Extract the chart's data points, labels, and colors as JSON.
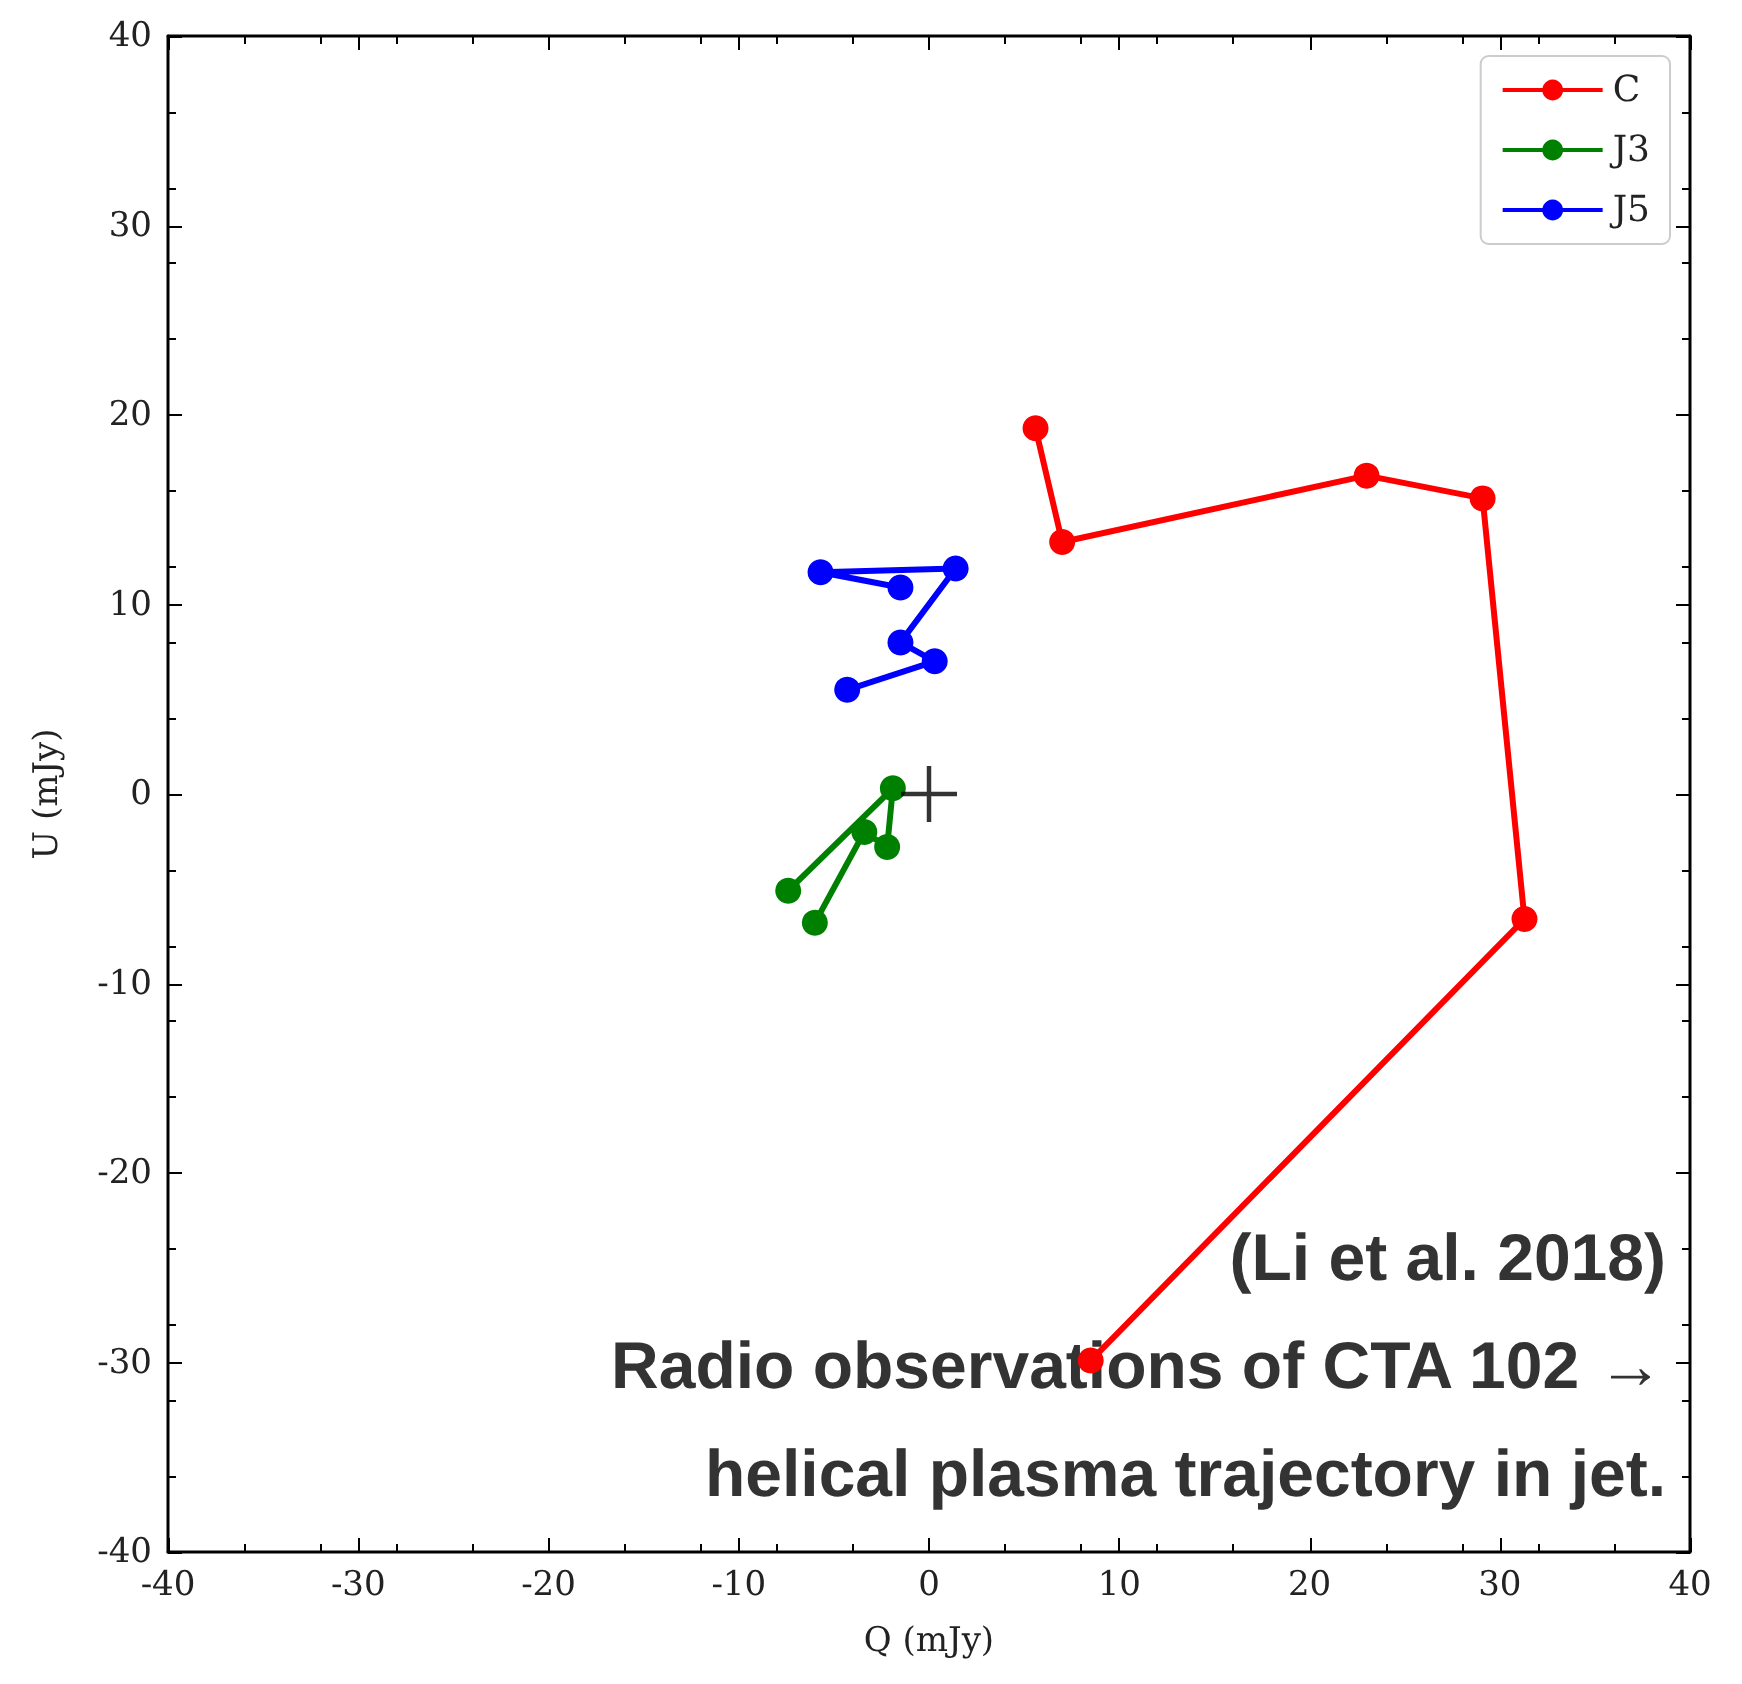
{
  "chart_data": {
    "type": "line",
    "xlabel": "Q (mJy)",
    "ylabel": "U (mJy)",
    "xlim": [
      -40,
      40
    ],
    "ylim": [
      -40,
      40
    ],
    "xticks": [
      -40,
      -30,
      -20,
      -10,
      0,
      10,
      20,
      30,
      40
    ],
    "yticks": [
      -40,
      -30,
      -20,
      -10,
      0,
      10,
      20,
      30,
      40
    ],
    "grid": false,
    "legend": "top right",
    "marker": "circle",
    "line_style": "solid",
    "series": [
      {
        "name": "C",
        "color": "#ff0000",
        "x": [
          8.5,
          31.3,
          29.1,
          23.0,
          7.0,
          5.6
        ],
        "values": [
          -29.9,
          -6.6,
          15.6,
          16.8,
          13.3,
          19.3
        ]
      },
      {
        "name": "J3",
        "color": "#008000",
        "x": [
          -7.4,
          -1.9,
          -2.2,
          -3.4,
          -6.0
        ],
        "values": [
          -5.1,
          0.3,
          -2.8,
          -2.0,
          -6.8
        ]
      },
      {
        "name": "J5",
        "color": "#0000ff",
        "x": [
          -1.5,
          -5.7,
          1.4,
          -1.5,
          0.3,
          -4.3
        ],
        "values": [
          10.9,
          11.7,
          11.9,
          8.0,
          7.0,
          5.5
        ]
      },
      {
        "type": "scatter",
        "marker": "cross",
        "color": "#000000",
        "x": [
          0
        ],
        "values": [
          0
        ]
      }
    ],
    "annotations": [
      "(Li et al. 2018)",
      "Radio observations of CTA 102 → helical plasma trajectory in jet."
    ]
  }
}
